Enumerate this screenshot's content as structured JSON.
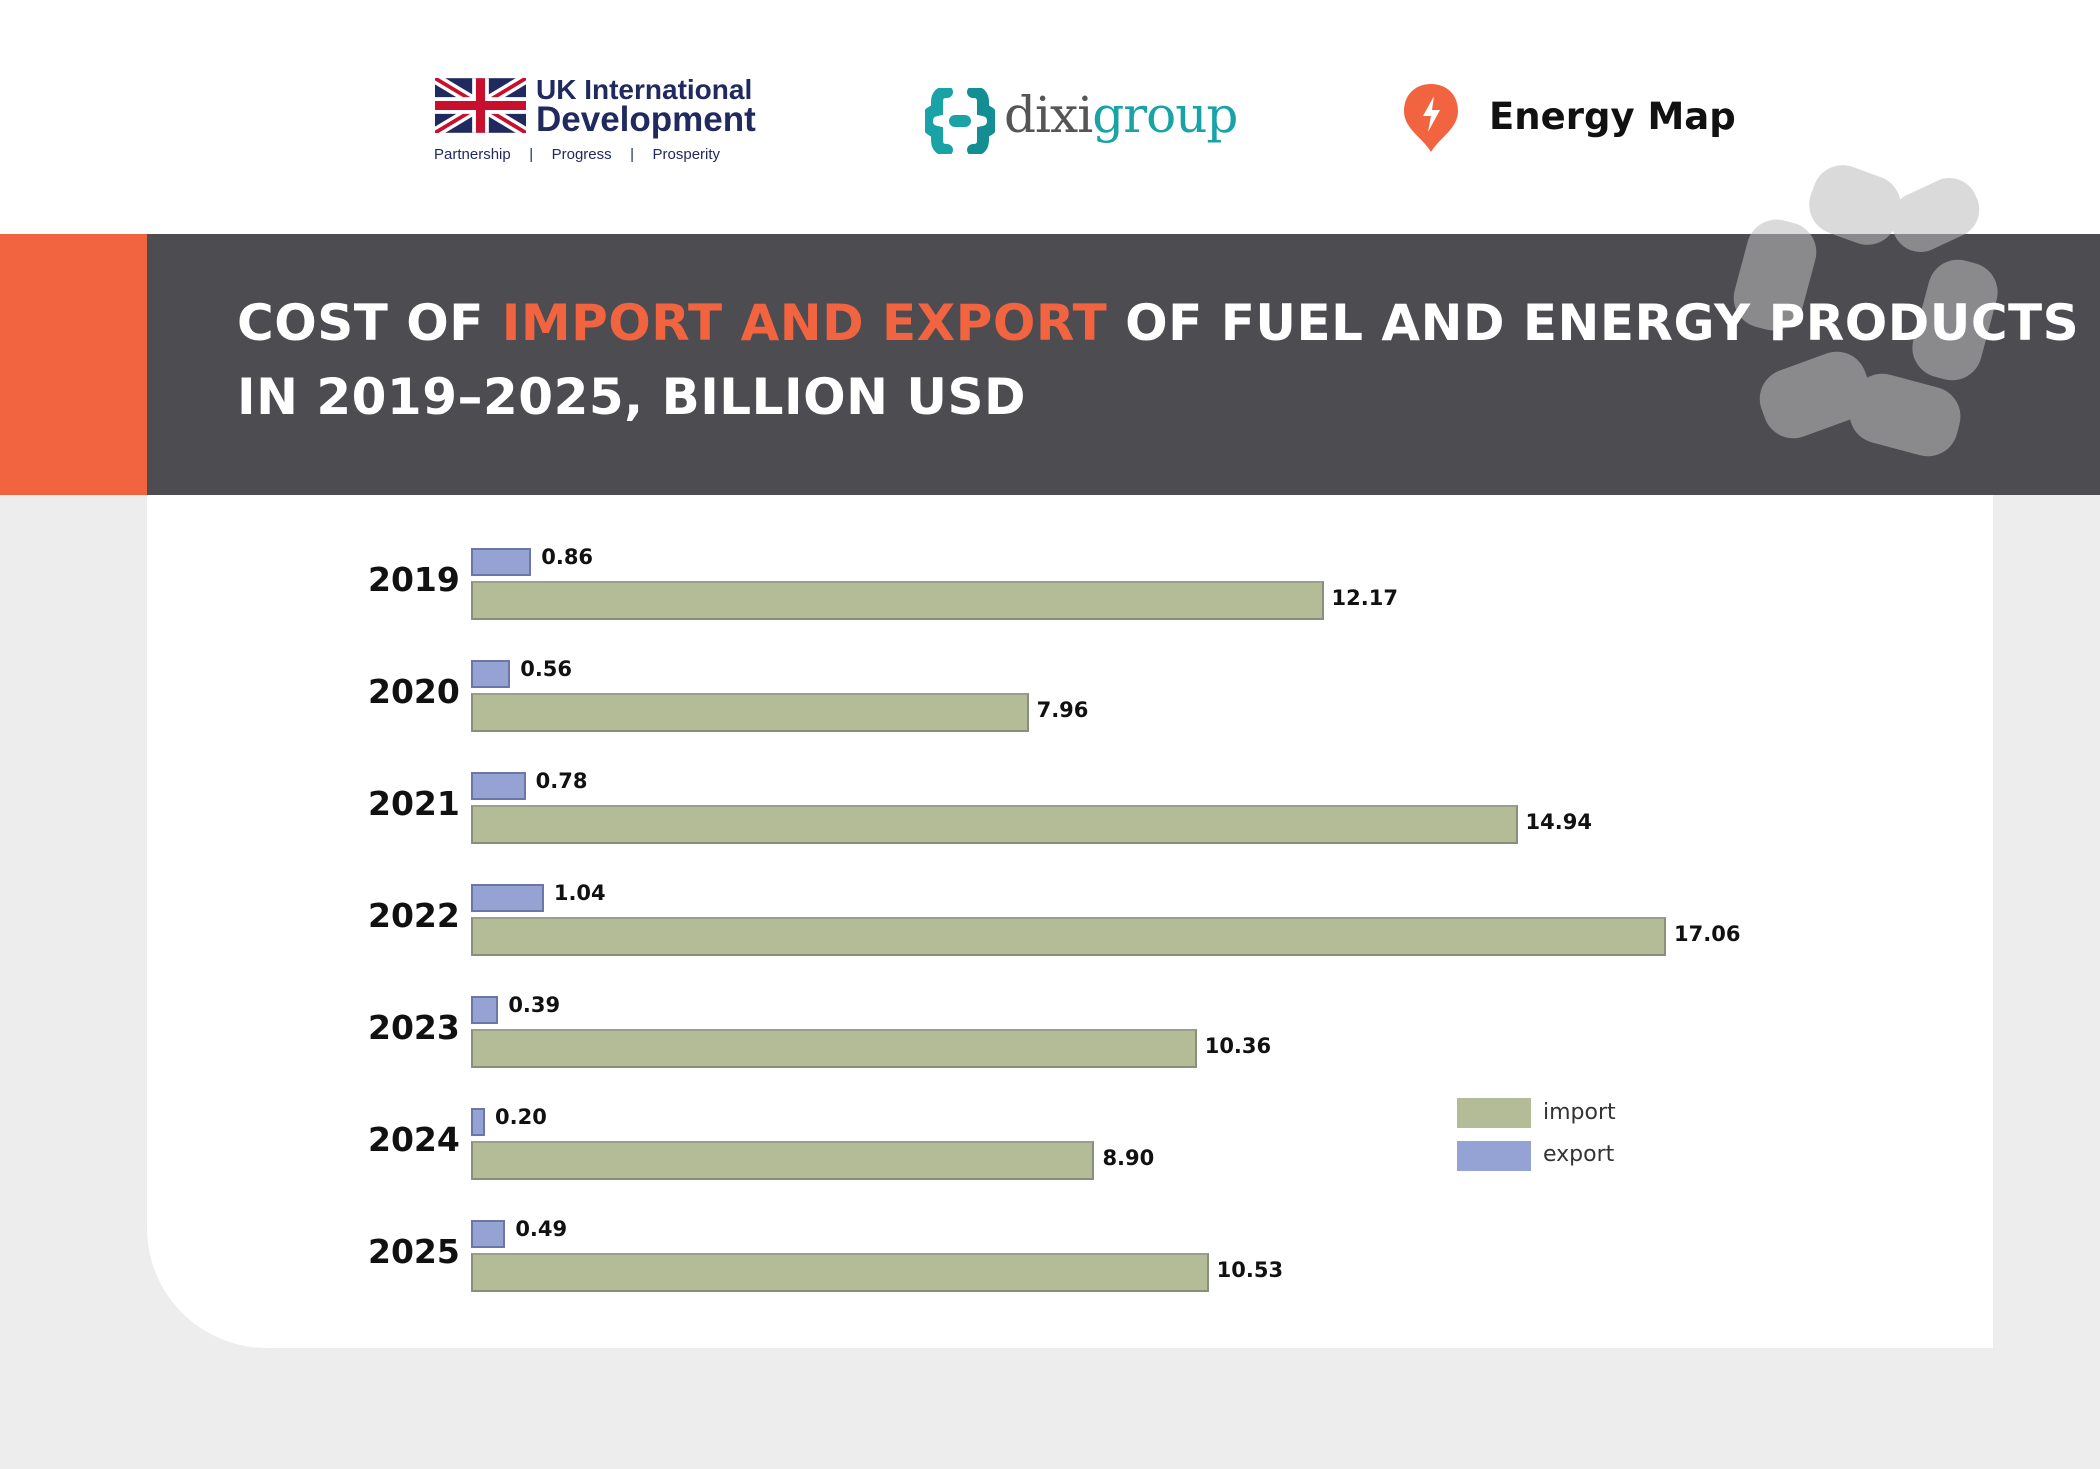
{
  "logos": {
    "uk": {
      "line1": "UK International",
      "line2": "Development",
      "tagline": "Partnership   |   Progress   |   Prosperity"
    },
    "dixigroup": {
      "part1": "dixi",
      "part2": "group"
    },
    "energy_map": {
      "name": "Energy Map"
    }
  },
  "header": {
    "title_part1": "COST OF ",
    "title_highlight": "IMPORT AND EXPORT",
    "title_part2": " OF FUEL AND ENERGY PRODUCTS",
    "title_line2": "IN 2019–2025, BILLION USD"
  },
  "colors": {
    "accent": "#f26440",
    "band": "#4d4c51",
    "import": "#b3bc96",
    "export": "#95a2d4"
  },
  "chart_data": {
    "type": "bar",
    "orientation": "horizontal",
    "title": "COST OF IMPORT AND EXPORT OF FUEL AND ENERGY PRODUCTS IN 2019–2025, BILLION USD",
    "categories": [
      "2019",
      "2020",
      "2021",
      "2022",
      "2023",
      "2024",
      "2025"
    ],
    "series": [
      {
        "name": "export",
        "values": [
          0.86,
          0.56,
          0.78,
          1.04,
          0.39,
          0.2,
          0.49
        ],
        "labels": [
          "0.86",
          "0.56",
          "0.78",
          "1.04",
          "0.39",
          "0.20",
          "0.49"
        ]
      },
      {
        "name": "import",
        "values": [
          12.17,
          7.96,
          14.94,
          17.06,
          10.36,
          8.9,
          10.53
        ],
        "labels": [
          "12.17",
          "7.96",
          "14.94",
          "17.06",
          "10.36",
          "8.90",
          "10.53"
        ]
      }
    ],
    "legend": {
      "placement": "right",
      "items": [
        "import",
        "export"
      ]
    },
    "grid": false,
    "xaxis_visible": false
  }
}
